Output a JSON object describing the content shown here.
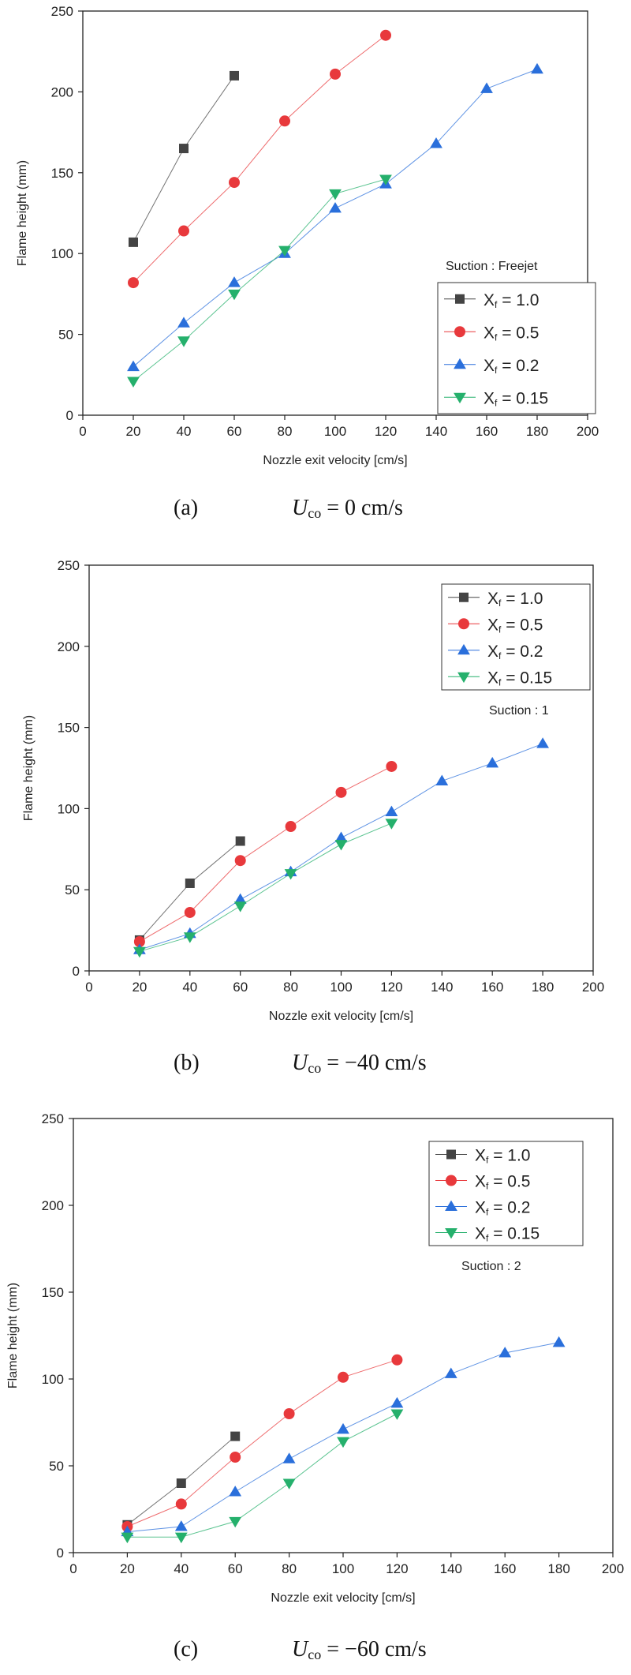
{
  "chart_data": [
    {
      "type": "line",
      "panel_label": "(a)",
      "caption_var": "U",
      "caption_sub": "co",
      "caption_rest": " = 0 cm/s",
      "xlabel": "Nozzle exit velocity [cm/s]",
      "ylabel": "Flame height (mm)",
      "xlim": [
        0,
        200
      ],
      "ylim": [
        0,
        250
      ],
      "xticks": [
        0,
        20,
        40,
        60,
        80,
        100,
        120,
        140,
        160,
        180,
        200
      ],
      "yticks": [
        0,
        50,
        100,
        150,
        200,
        250
      ],
      "grid": false,
      "legend_title": "Suction : Freejet",
      "legend_position": "bottom-right",
      "series": [
        {
          "name": "X",
          "name_sub": "f",
          "name_rest": " = 1.0",
          "color": "#444444",
          "marker": "square",
          "x": [
            20,
            40,
            60
          ],
          "y": [
            107,
            165,
            210
          ]
        },
        {
          "name": "X",
          "name_sub": "f",
          "name_rest": " = 0.5",
          "color": "#e8393c",
          "marker": "circle",
          "x": [
            20,
            40,
            60,
            80,
            100,
            120
          ],
          "y": [
            82,
            114,
            144,
            182,
            211,
            235
          ]
        },
        {
          "name": "X",
          "name_sub": "f",
          "name_rest": " = 0.2",
          "color": "#2a6fdb",
          "marker": "triangle-up",
          "x": [
            20,
            40,
            60,
            80,
            100,
            120,
            140,
            160,
            180
          ],
          "y": [
            30,
            57,
            82,
            100,
            128,
            143,
            168,
            202,
            214
          ]
        },
        {
          "name": "X",
          "name_sub": "f",
          "name_rest": " = 0.15",
          "color": "#25b06c",
          "marker": "triangle-down",
          "x": [
            20,
            40,
            60,
            80,
            100,
            120
          ],
          "y": [
            21,
            46,
            75,
            102,
            137,
            146
          ]
        }
      ]
    },
    {
      "type": "line",
      "panel_label": "(b)",
      "caption_var": "U",
      "caption_sub": "co",
      "caption_rest": " = −40 cm/s",
      "xlabel": "Nozzle exit velocity [cm/s]",
      "ylabel": "Flame height (mm)",
      "xlim": [
        0,
        200
      ],
      "ylim": [
        0,
        250
      ],
      "xticks": [
        0,
        20,
        40,
        60,
        80,
        100,
        120,
        140,
        160,
        180,
        200
      ],
      "yticks": [
        0,
        50,
        100,
        150,
        200,
        250
      ],
      "grid": false,
      "legend_title": "Suction : 1",
      "legend_position": "top-right",
      "series": [
        {
          "name": "X",
          "name_sub": "f",
          "name_rest": " = 1.0",
          "color": "#444444",
          "marker": "square",
          "x": [
            20,
            40,
            60
          ],
          "y": [
            19,
            54,
            80
          ]
        },
        {
          "name": "X",
          "name_sub": "f",
          "name_rest": " = 0.5",
          "color": "#e8393c",
          "marker": "circle",
          "x": [
            20,
            40,
            60,
            80,
            100,
            120
          ],
          "y": [
            18,
            36,
            68,
            89,
            110,
            126
          ]
        },
        {
          "name": "X",
          "name_sub": "f",
          "name_rest": " = 0.2",
          "color": "#2a6fdb",
          "marker": "triangle-up",
          "x": [
            20,
            40,
            60,
            80,
            100,
            120,
            140,
            160,
            180
          ],
          "y": [
            13,
            23,
            44,
            61,
            82,
            98,
            117,
            128,
            140
          ]
        },
        {
          "name": "X",
          "name_sub": "f",
          "name_rest": " = 0.15",
          "color": "#25b06c",
          "marker": "triangle-down",
          "x": [
            20,
            40,
            60,
            80,
            100,
            120
          ],
          "y": [
            12,
            21,
            40,
            60,
            78,
            91
          ]
        }
      ]
    },
    {
      "type": "line",
      "panel_label": "(c)",
      "caption_var": "U",
      "caption_sub": "co",
      "caption_rest": " = −60 cm/s",
      "xlabel": "Nozzle exit velocity [cm/s]",
      "ylabel": "Flame height (mm)",
      "xlim": [
        0,
        200
      ],
      "ylim": [
        0,
        250
      ],
      "xticks": [
        0,
        20,
        40,
        60,
        80,
        100,
        120,
        140,
        160,
        180,
        200
      ],
      "yticks": [
        0,
        50,
        100,
        150,
        200,
        250
      ],
      "grid": false,
      "legend_title": "Suction : 2",
      "legend_position": "top-right",
      "series": [
        {
          "name": "X",
          "name_sub": "f",
          "name_rest": " = 1.0",
          "color": "#444444",
          "marker": "square",
          "x": [
            20,
            40,
            60
          ],
          "y": [
            16,
            40,
            67
          ]
        },
        {
          "name": "X",
          "name_sub": "f",
          "name_rest": " = 0.5",
          "color": "#e8393c",
          "marker": "circle",
          "x": [
            20,
            40,
            60,
            80,
            100,
            120
          ],
          "y": [
            15,
            28,
            55,
            80,
            101,
            111
          ]
        },
        {
          "name": "X",
          "name_sub": "f",
          "name_rest": " = 0.2",
          "color": "#2a6fdb",
          "marker": "triangle-up",
          "x": [
            20,
            40,
            60,
            80,
            100,
            120,
            140,
            160,
            180
          ],
          "y": [
            12,
            15,
            35,
            54,
            71,
            86,
            103,
            115,
            121
          ]
        },
        {
          "name": "X",
          "name_sub": "f",
          "name_rest": " = 0.15",
          "color": "#25b06c",
          "marker": "triangle-down",
          "x": [
            20,
            40,
            60,
            80,
            100,
            120
          ],
          "y": [
            9,
            9,
            18,
            40,
            64,
            80
          ]
        }
      ]
    }
  ]
}
